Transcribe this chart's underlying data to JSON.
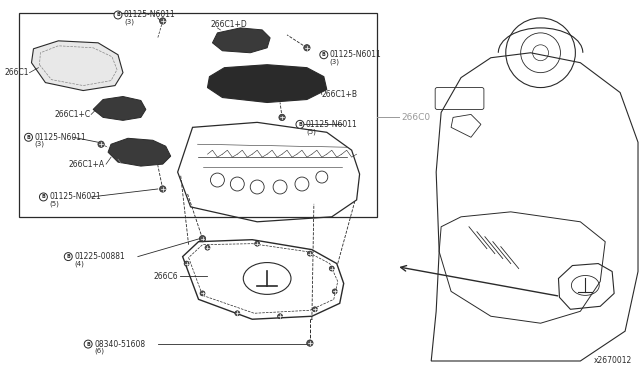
{
  "bg_color": "#ffffff",
  "line_color": "#2a2a2a",
  "gray_color": "#999999",
  "diagram_id": "x2670012",
  "fontsize_small": 5.5,
  "fontsize_tiny": 5.0,
  "fontsize_mid": 6.5,
  "parts": {
    "label_266C6": "266C6",
    "label_266C0": "266C0",
    "label_266C1A": "266C1+A",
    "label_266C1B": "266C1+B",
    "label_266C1C": "266C1+C",
    "label_266C1D": "266C1+D",
    "label_266C1": "266C1",
    "part_08340": "08340-51608",
    "part_08340_qty": "(6)",
    "part_01225": "01225-00881",
    "part_01225_qty": "(4)",
    "part_N6021": "01125-N6021",
    "part_N6021_qty": "(5)",
    "part_N6011": "01125-N6011",
    "part_N6011_qty3": "(3)",
    "part_N6011_qty5": "(5)"
  }
}
